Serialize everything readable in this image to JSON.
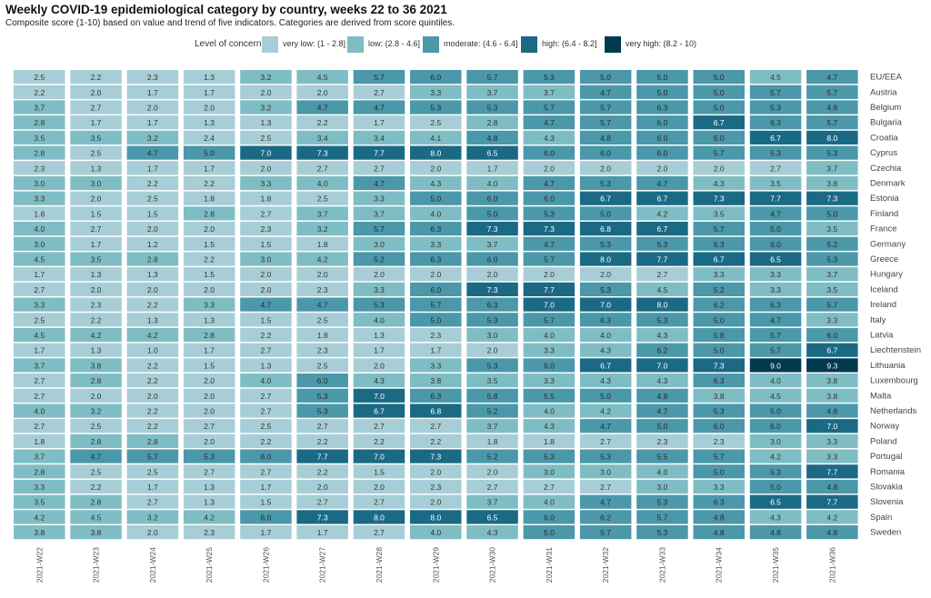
{
  "chart_data": {
    "type": "heatmap",
    "title": "Weekly COVID-19 epidemiological category by country, weeks 22 to 36 2021",
    "subtitle": "Composite score (1-10) based on value and trend of five indicators. Categories are derived from score quintiles.",
    "legend": {
      "title": "Level of concern",
      "placement": "top-center",
      "categories": [
        {
          "label": "very low: (1 - 2.8]",
          "min": 1,
          "max": 2.8,
          "color": "#a7ced6",
          "text_color": "#333333"
        },
        {
          "label": "low: (2.8 - 4.6]",
          "min": 2.8,
          "max": 4.6,
          "color": "#7fbdc4",
          "text_color": "#333333"
        },
        {
          "label": "moderate: (4.6 - 6.4]",
          "min": 4.6,
          "max": 6.4,
          "color": "#4a98aa",
          "text_color": "#2a2a2a"
        },
        {
          "label": "high: (6.4 - 8.2]",
          "min": 6.4,
          "max": 8.2,
          "color": "#1b6a85",
          "text_color": "#ffffff"
        },
        {
          "label": "very high: (8.2 - 10)",
          "min": 8.2,
          "max": 10,
          "color": "#003a4f",
          "text_color": "#ffffff"
        }
      ]
    },
    "x": [
      "2021-W22",
      "2021-W23",
      "2021-W24",
      "2021-W25",
      "2021-W26",
      "2021-W27",
      "2021-W28",
      "2021-W29",
      "2021-W30",
      "2021-W31",
      "2021-W32",
      "2021-W33",
      "2021-W34",
      "2021-W35",
      "2021-W36"
    ],
    "y": [
      "EU/EEA",
      "Austria",
      "Belgium",
      "Bulgaria",
      "Croatia",
      "Cyprus",
      "Czechia",
      "Denmark",
      "Estonia",
      "Finland",
      "France",
      "Germany",
      "Greece",
      "Hungary",
      "Iceland",
      "Ireland",
      "Italy",
      "Latvia",
      "Liechtenstein",
      "Lithuania",
      "Luxembourg",
      "Malta",
      "Netherlands",
      "Norway",
      "Poland",
      "Portugal",
      "Romania",
      "Slovakia",
      "Slovenia",
      "Spain",
      "Sweden"
    ],
    "values": [
      [
        2.5,
        2.2,
        2.3,
        1.3,
        3.2,
        4.5,
        5.7,
        6.0,
        5.7,
        5.3,
        5.0,
        5.0,
        5.0,
        4.5,
        4.7
      ],
      [
        2.2,
        2.0,
        1.7,
        1.7,
        2.0,
        2.0,
        2.7,
        3.3,
        3.7,
        3.7,
        4.7,
        5.0,
        5.0,
        5.7,
        5.7
      ],
      [
        3.7,
        2.7,
        2.0,
        2.0,
        3.2,
        4.7,
        4.7,
        5.3,
        5.3,
        5.7,
        5.7,
        6.3,
        5.0,
        5.3,
        4.8
      ],
      [
        2.8,
        1.7,
        1.7,
        1.3,
        1.3,
        2.2,
        1.7,
        2.5,
        2.8,
        4.7,
        5.7,
        6.0,
        6.7,
        6.3,
        5.7
      ],
      [
        3.5,
        3.5,
        3.2,
        2.4,
        2.5,
        3.4,
        3.4,
        4.1,
        4.8,
        4.3,
        4.8,
        6.0,
        6.0,
        6.7,
        8.0
      ],
      [
        2.8,
        2.5,
        4.7,
        5.0,
        7.0,
        7.3,
        7.7,
        8.0,
        6.5,
        6.0,
        6.0,
        6.0,
        5.7,
        5.3,
        5.3
      ],
      [
        2.3,
        1.3,
        1.7,
        1.7,
        2.0,
        2.7,
        2.7,
        2.0,
        1.7,
        2.0,
        2.0,
        2.0,
        2.0,
        2.7,
        3.7
      ],
      [
        3.0,
        3.0,
        2.2,
        2.2,
        3.3,
        4.0,
        4.7,
        4.3,
        4.0,
        4.7,
        5.3,
        4.7,
        4.3,
        3.5,
        3.8
      ],
      [
        3.3,
        2.0,
        2.5,
        1.8,
        1.8,
        2.5,
        3.3,
        5.0,
        6.0,
        6.0,
        6.7,
        6.7,
        7.3,
        7.7,
        7.3
      ],
      [
        1.8,
        1.5,
        1.5,
        2.8,
        2.7,
        3.7,
        3.7,
        4.0,
        5.0,
        5.3,
        5.0,
        4.2,
        3.5,
        4.7,
        5.0
      ],
      [
        4.0,
        2.7,
        2.0,
        2.0,
        2.3,
        3.2,
        5.7,
        6.3,
        7.3,
        7.3,
        6.8,
        6.7,
        5.7,
        5.0,
        3.5
      ],
      [
        3.0,
        1.7,
        1.2,
        1.5,
        1.5,
        1.8,
        3.0,
        3.3,
        3.7,
        4.7,
        5.3,
        5.3,
        6.3,
        6.0,
        5.2
      ],
      [
        4.5,
        3.5,
        2.8,
        2.2,
        3.0,
        4.2,
        5.2,
        6.3,
        6.0,
        5.7,
        8.0,
        7.7,
        6.7,
        6.5,
        5.3
      ],
      [
        1.7,
        1.3,
        1.3,
        1.5,
        2.0,
        2.0,
        2.0,
        2.0,
        2.0,
        2.0,
        2.0,
        2.7,
        3.3,
        3.3,
        3.7
      ],
      [
        2.7,
        2.0,
        2.0,
        2.0,
        2.0,
        2.3,
        3.3,
        6.0,
        7.3,
        7.7,
        5.3,
        4.5,
        5.2,
        3.3,
        3.5
      ],
      [
        3.3,
        2.3,
        2.2,
        3.3,
        4.7,
        4.7,
        5.3,
        5.7,
        6.3,
        7.0,
        7.0,
        8.0,
        6.2,
        6.3,
        5.7
      ],
      [
        2.5,
        2.2,
        1.3,
        1.3,
        1.5,
        2.5,
        4.0,
        5.0,
        5.3,
        5.7,
        6.3,
        5.3,
        5.0,
        4.7,
        3.3
      ],
      [
        4.5,
        4.2,
        4.2,
        2.8,
        2.2,
        1.8,
        1.3,
        2.3,
        3.0,
        4.0,
        4.0,
        4.3,
        5.8,
        5.7,
        6.0
      ],
      [
        1.7,
        1.3,
        1.0,
        1.7,
        2.7,
        2.3,
        1.7,
        1.7,
        2.0,
        3.3,
        4.3,
        6.2,
        5.0,
        5.7,
        6.7
      ],
      [
        3.7,
        3.8,
        2.2,
        1.5,
        1.3,
        2.5,
        2.0,
        3.3,
        5.3,
        6.0,
        6.7,
        7.0,
        7.3,
        9.0,
        9.3
      ],
      [
        2.7,
        2.8,
        2.2,
        2.0,
        4.0,
        6.0,
        4.3,
        3.8,
        3.5,
        3.3,
        4.3,
        4.3,
        6.3,
        4.0,
        3.8
      ],
      [
        2.7,
        2.0,
        2.0,
        2.0,
        2.7,
        5.3,
        7.0,
        6.3,
        5.8,
        5.5,
        5.0,
        4.8,
        3.8,
        4.5,
        3.8
      ],
      [
        4.0,
        3.2,
        2.2,
        2.0,
        2.7,
        5.3,
        6.7,
        6.8,
        5.2,
        4.0,
        4.2,
        4.7,
        5.3,
        5.0,
        4.8
      ],
      [
        2.7,
        2.5,
        2.2,
        2.7,
        2.5,
        2.7,
        2.7,
        2.7,
        3.7,
        4.3,
        4.7,
        5.0,
        6.0,
        6.0,
        7.0
      ],
      [
        1.8,
        2.8,
        2.8,
        2.0,
        2.2,
        2.2,
        2.2,
        2.2,
        1.8,
        1.8,
        2.7,
        2.3,
        2.3,
        3.0,
        3.3
      ],
      [
        3.7,
        4.7,
        5.7,
        5.3,
        6.0,
        7.7,
        7.0,
        7.3,
        5.2,
        5.3,
        5.3,
        5.5,
        5.7,
        4.2,
        3.3
      ],
      [
        2.8,
        2.5,
        2.5,
        2.7,
        2.7,
        2.2,
        1.5,
        2.0,
        2.0,
        3.0,
        3.0,
        4.0,
        5.0,
        5.3,
        7.7
      ],
      [
        3.3,
        2.2,
        1.7,
        1.3,
        1.7,
        2.0,
        2.0,
        2.3,
        2.7,
        2.7,
        2.7,
        3.0,
        3.3,
        5.0,
        4.8
      ],
      [
        3.5,
        2.8,
        2.7,
        1.3,
        1.5,
        2.7,
        2.7,
        2.0,
        3.7,
        4.0,
        4.7,
        5.3,
        6.3,
        6.5,
        7.7
      ],
      [
        4.2,
        4.5,
        3.2,
        4.2,
        6.0,
        7.3,
        8.0,
        8.0,
        6.5,
        6.0,
        6.2,
        5.7,
        4.8,
        4.3,
        4.2
      ],
      [
        3.8,
        3.8,
        2.0,
        2.3,
        1.7,
        1.7,
        2.7,
        4.0,
        4.3,
        5.0,
        5.7,
        5.3,
        4.8,
        4.8,
        4.8
      ]
    ],
    "value_format": "one decimal",
    "xlabel": "",
    "ylabel": "",
    "grid": false
  }
}
